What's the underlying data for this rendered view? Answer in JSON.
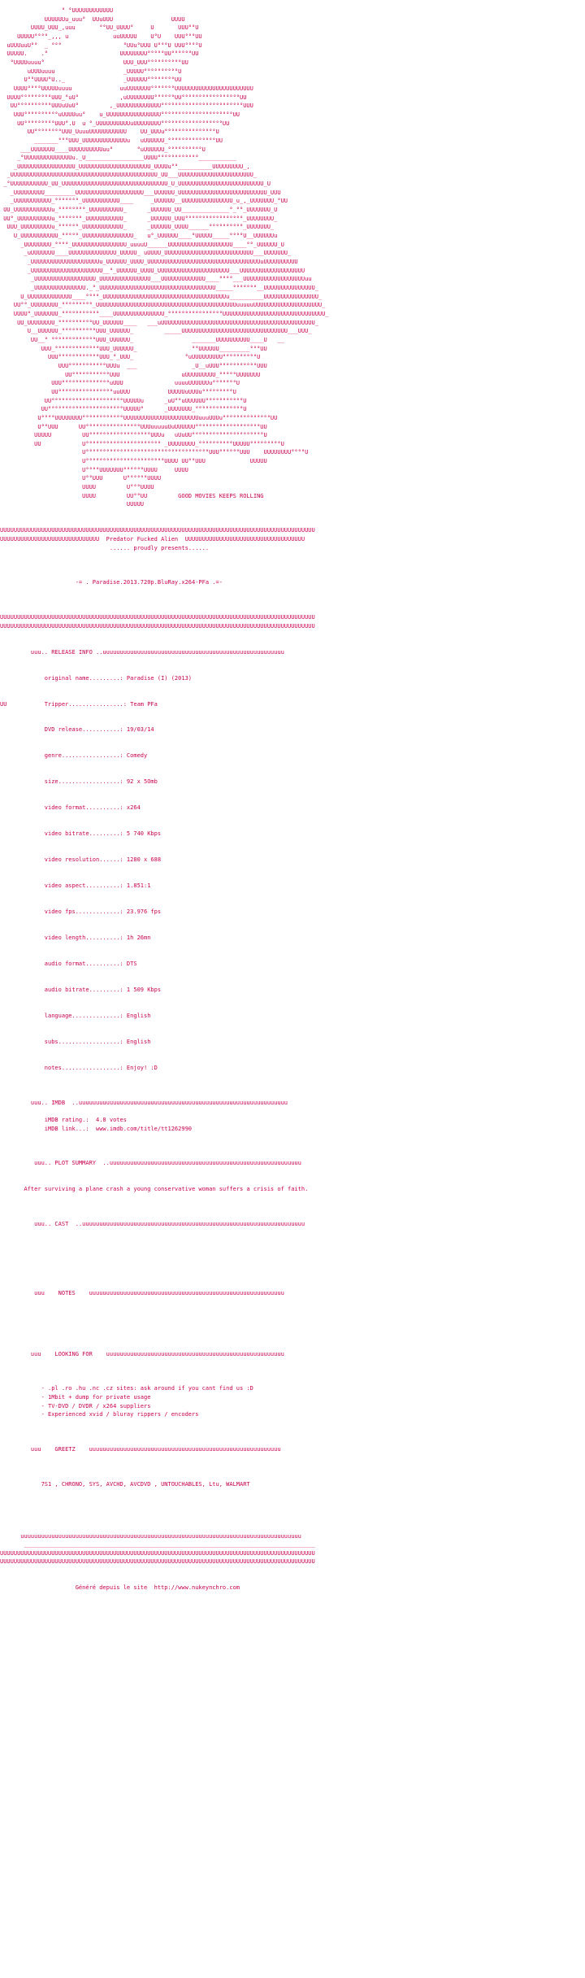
{
  "accent_color": "#c8004e",
  "nfo_text": "                  ° °UUUUUUUUUUUU\n             UUUUUUu_uuu°  UUuUUU                 UUUU\n         UUUU_UUU_,uuu       °°UU_UUUU°     U       UUU°°U\n     UUUUU°°°°_,,, u             uuUUUUU    U°U    UUU°°°UU\n  uUUUuuU°°  _ °°°                  °UUu°UUU U°°°U UUU°°°°U\n  UUUUU.    .°                     UUUUUUUU°°°°°UU°°°°°°UU\n   °UUUUuuuu°                       UUU_UUU°°°°°°°°°°UU\n        uUUUuuuu                    _UUUUU°°°°°°°°°°U\n       U°°UUUU°U.._                 _UUUUUU°°°°°°°°UU\n    UUUU°°°°UUUUUuuuu              uuUUUUUUU°°°°°°°UUUUUUUUUUUUUUUUUUUUUUU\n  UUUU°°°°°°°°°UUU_°uU°            ,uUUUUUUUU°°°°°°UU°°°°°°°°°°°°°°°°°UU\n   UU°°°°°°°°°°UUUuUuU°         ,_UUUUUUUUUUUUU°°°°°°°°°°°°°°°°°°°°°°°°UUU\n    UUU°°°°°°°°°°uUUUUuu°    u_UUUUUUUUUUUUUUUU°°°°°°°°°°°°°°°°°°°°°UU\n     UU°°°°°°°°°UUU°.U  u °_UUUUUUUUUUuUUUUUUUU°°°°°°°°°°°°°°°°°°UU\n        UU°°°°°°°°UUU_UuuuUUUUUUUUUUU    UU_UUUu°°°°°°°°°°°°°°°U\n          _______°°°UUU_UUUUUUUUUUUUUu   uUUUUUU_°°°°°°°°°°°°°°UU\n      ___UUUUUUU____UUUUUUUUUUuu°       °uUUUUUU_°°°°°°°°°°U\n     _°UUUUUUUUUUUUUUu._U_________________UUUU°°°°°°°°°°°°___________\n    _UUUUUUUUUUUUUUUUU_UUUUUUUUUUUUUUUUUUUUU_UUUUu°°__________UUUUUUUUU_,\n  _UUUUUUUUUUUUUUUUUUUUUUUUUUUUUUUUUUUUUUUUUUU_UU___UUUUUUUUUUUUUUUUUUUUUU_\n _°UUUUUUUUUUU_UU_UUUUUUUUUUUUUUUUUUUUUUUUUUUUUUU_U_UUUUUUUUUUUUUUUUUUUUUUUUU_U\n   _UUUUUUUUU_________UUUUUUUUUUUUUUUUUUUU___UUUUUU_UUUUUUUUUUUUUUUUUUUUUUUUUU_UUU\n   _UUUUUUUUUUU_°°°°°°°_UUUUUUUUUUU____     _UUUUUU__UUUUUUUUUUUUUUU_u_,_UUUUUUU_°UU\n UU_UUUUUUUUUUUu_°°°°°°°°_UUUUUUUUUU_      _UUUUUU_UU______________°_°°_UUUUUUU_U\n UU°_UUUUUUUUUUu_°°°°°°°_UUUUUUUUUUU_      _UUUUUU_UUU°°°°°°°°°°°°°°°°°_UUUUUUUU_\n  UUU_UUUUUUUUUu_°°°°°°_UUUUUUUUUUUU_      _UUUUUU_UUUU______°°°°°°°°°°_UUUUUUU_\n    U_UUUUUUUUUUU_°°°°°_UUUUUUUUUUUUUUU_   u°_UUUUUU____°UUUUU_____°°°°U__UUUUUUu\n      _UUUUUUUU_°°°°_UUUUUUUUUUUUUUUU_uuuuU______UUUUUUUUUUUUUUUUUUU____°°_UUUUUU_U\n       _uUUUUUUU____UUUUUUUUUUUUUU_UUUUU_ uUUUU_UUUUUUUUUUUUUUUUUUUUUUUUUU___UUUUUUU_\n        _UUUUUUUUUUUUUUUUUUUUu_UUUUUU_UUUU_UUUUUUUUUUUUUUUUUUUUUUUUUUUUUUUUUuUUUUUUUUUU\n        _UUUUUUUUUUUUUUUUUUUUU__°_UUUUUU_UUUU_UUUUUUUUUUUUUUUUUUUUU___UUUUUUUUUUUUUUUUUUU\n         _UUUUUUUUUUUUUUUUUU_UUUUUUUUUUUUUUU___UUUUUUUUUUUUU____°°°°___UUUUUUUUUUUUUUUUUUuu\n         _UUUUUUUUUUUUUUU._°_UUUUUUUUUUUUUUUUUUUUUUUUUUUUUUUUUU_____°°°°°°°__UUUUUUUUUUUUUUU_\n      U_UUUUUUUUUUUUU____°°°°_UUUUUUUUUUUUUUUUUUUUUUUUUUUUUUUUUUUUu__________UUUUUUUUUUUUUUUU_\n    UU°°_UUUUUUUU_°°°°°°°°°_UUUUUUUUUUUUUUUUUUUUUUUUUUUUUUUUUUUUUUUUUuuuuuUUUUUUUUUUUUUUUUUUUU_\n    UUUU°_UUUUUUU_°°°°°°°°°°°____UUUUUUUUUUUUUUU_°°°°°°°°°°°°°°°°UUUUUUUUUUUUUUUUUUUUUUUUUUUUUU_\n     UU_UUUUUUUU_°°°°°°°°°°UU_UUUUUU____   ___uUUUUUUUUUUUUUUUUUUUUUUUUUUUUUUUUUUUUUUUUUUUUU_\n        U__UUUUUU_°°°°°°°°°°UUU_UUUUUU_         _____UUUUUUUUUUUUUUUUUUUUUUUUUUUUUUU___UUU_\n         UU__° °°°°°°°°°°°°°UUU_UUUUUU_                 _______UUUUUUUUUU____U   __\n            UUU_°°°°°°°°°°°°°UUU_UUUUUU_                °°UUUUUU_________°°°UU\n              UUU°°°°°°°°°°°°UUU_°_UUU_               °uUUUUUUUUU°°°°°°°°°°U\n                 UUU°°°°°°°°°°°UUUu  ___                _U__uUUU°°°°°°°°°°°UUU\n                   UU°°°°°°°°°°°UUU                  uUUUUUUUUU_°°°°°UUUUUUU\n               UUU°°°°°°°°°°°°°°uUUU               uuuuUUUUUUu°°°°°°°U\n               UU°°°°°°°°°°°°°°°°uuUUU           UUUUUuUUUu°°°°°°°°°U\n             UU°°°°°°°°°°°°°°°°°°°°°UUUUUu      _uU°°uUUUUUU°°°°°°°°°°°U\n            UU°°°°°°°°°°°°°°°°°°°°°°UUUUU°      _UUUUUUU_°°°°°°°°°°°°°°U\n           U°°°°UUUUUUUU°°°°°°°°°°°°UUUUUUUUUUUUUUUUUUUUUUuuuUUUu°°°°°°°°°°°°°°UU\n           U°°UUU      UU°°°°°°°°°°°°°°°°UUUuuuuuUuUUUUUU°°°°°°°°°°°°°°°°°°°UU\n          UUUUU         UU°°°°°°°°°°°°°°°°°°UUUu   uUuUU°°°°°°°°°°°°°°°°°°°°°U\n          UU            U°°°°°°°°°°°°°°°°°°°°°° _UUUUUUUU_°°°°°°°°°°UUUUU°°°°°°°°°U\n                        U°°°°°°°°°°°°°°°°°°°°°°°°°°°°°°°°°°°°UUU°°°°°°UUU    UUUUUUUU°°°°U\n                        U°°°°°°°°°°°°°°°°°°°°°°°UUUU UU°°UUU             UUUUU\n                        U°°°°UUUUUUU°°°°°°UUUU     UUUU\n                        U°°UUU      U°°°°°°UUUU\n                        UUUU         U°°°UUUU\n                        UUUU         UU°°UU         GOOD MOVIES KEEPS ROLLING\n                                     UUUUU\n\n\nUUUUUUUUUUUUUUUUUUUUUUUUUUUUUUUUUUUUUUUUUUUUUUUUUUUUUUUUUUUUUUUUUUUUUUUUUUUUUUUUUUUUUUUUUUUU\nUUUUUUUUUUUUUUUUUUUUUUUUUUUUU  Predator Fucked Alien  UUUUUUUUUUUUUUUUUUUUUUUUUUUUUUUUUUU\n                                ...... proudly presents......\n\n\n\n                      -= . Paradise.2013.720p.BluRay.x264-PFa .=-\n\n\n\nUUUUUUUUUUUUUUUUUUUUUUUUUUUUUUUUUUUUUUUUUUUUUUUUUUUUUUUUUUUUUUUUUUUUUUUUUUUUUUUUUUUUUUUUUUUU\nUUUUUUUUUUUUUUUUUUUUUUUUUUUUUUUUUUUUUUUUUUUUUUUUUUUUUUUUUUUUUUUUUUUUUUUUUUUUUUUUUUUUUUUUUUUU\n\n\n         uuu.. RELEASE INFO ..uuuuuuuuuuuuuuuuuuuuuuuuuuuuuuuuuuuuuuuuuuuuuuuuuuuuu\n\n\n             original name.........: Paradise (I) (2013)\n\n\nUU           Tripper................: Team PFa\n\n\n             DVD release...........: 19/03/14\n\n\n             genre.................: Comedy\n\n\n             size..................: 92 x 5Omb\n\n\n             video format..........: x264\n\n\n             video bitrate.........: 5 740 Kbps\n\n\n             video resolution......: 1280 x 688\n\n\n             video aspect..........: 1.851:1\n\n\n             video fps.............: 23.976 fps\n\n\n             video length..........: 1h 26mn\n\n\n             audio format..........: DTS\n\n\n             audio bitrate.........: 1 509 Kbps\n\n\n             language..............: English\n\n\n             subs..................: English\n\n\n             notes.................: Enjoy! :D\n\n\n\n         uuu.. IMDB  ..uuuuuuuuuuuuuuuuuuuuuuuuuuuuuuuuuuuuuuuuuuuuuuuuuuuuuuuuuuuuu\n\n             iMDB rating.:  4.8 votes\n             iMDB link...:  www.imdb.com/title/tt1262990\n\n\n\n          uuu.. PLOT SUMMARY  ..uuuuuuuuuuuuuuuuuuuuuuuuuuuuuuuuuuuuuuuuuuuuuuuuuuuuuuuu\n\n\n       After surviving a plane crash a young conservative woman suffers a crisis of faith.\n\n\n\n          uuu.. CAST  ..uuuuuuuuuuuuuuuuuuuuuuuuuuuuuuuuuuuuuuuuuuuuuuuuuuuuuuuuuuuuuuuuu\n\n\n\n\n\n\n\n          uuu    NOTES    uuuuuuuuuuuuuuuuuuuuuuuuuuuuuuuuuuuuuuuuuuuuuuuuuuuuuuuuu\n\n\n\n\n\n\n         uuu    LOOKING FOR    uuuuuuuuuuuuuuuuuuuuuuuuuuuuuuuuuuuuuuuuuuuuuuuuuuuu\n\n\n\n            - .pl .ro .hu .nc .cz sites: ask around if you cant find us :D\n            - 1Mbit + dump for private usage\n            - TV-DVD / DVDR / x264 suppliers\n            - Experienced xvid / bluray rippers / encoders\n\n\n\n         uuu    GREETZ    uuuuuuuuuuuuuuuuuuuuuuuuuuuuuuuuuuuuuuuuuuuuuuuuuuuuuuuu\n\n\n\n            7S1 , CHRONO, SYS, AVCHD, AVCDVD , UNTOUCHABLES, Ltu, WALMART\n\n\n\n\n\n      uuuuuuuuuuuuuuuuuuuuuuuuuuuuuuuuuuuuuuuuuuuuuuuuuuuuuuuuuuuuuuuuuuuuuuuuuuuuuuuuuu\n       _____________________________________________________________________________________\nUUUUUUUUUUUUUUUUUUUUUUUUUUUUUUUUUUUUUUUUUUUUUUUUUUUUUUUUUUUUUUUUUUUUUUUUUUUUUUUUUUUUUUUUUUUU\nUUUUUUUUUUUUUUUUUUUUUUUUUUUUUUUUUUUUUUUUUUUUUUUUUUUUUUUUUUUUUUUUUUUUUUUUUUUUUUUUUUUUUUUUUUUU\n\n\n                      Généré depuis le site  http://www.nukeynchro.com"
}
